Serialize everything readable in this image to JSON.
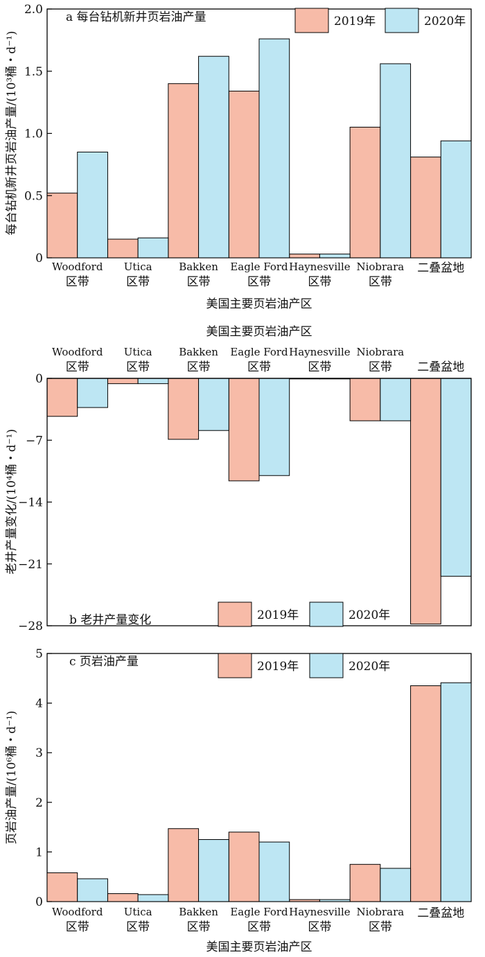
{
  "legend": [
    {
      "label": "2019年",
      "color": "#f7bba8"
    },
    {
      "label": "2020年",
      "color": "#bde6f3"
    }
  ],
  "chart_data": [
    {
      "type": "bar",
      "title": "a 每台钻机新井页岩油产量",
      "xlabel": "美国主要页岩油产区",
      "ylabel": "每台钻机新井页岩油产量/(10³桶・d⁻¹)",
      "categories": [
        [
          "Woodford",
          "区带"
        ],
        [
          "Utica",
          "区带"
        ],
        [
          "Bakken",
          "区带"
        ],
        [
          "Eagle Ford",
          "区带"
        ],
        [
          "Haynesville",
          "区带"
        ],
        [
          "Niobrara",
          "区带"
        ],
        [
          "二叠盆地",
          ""
        ]
      ],
      "series": [
        {
          "name": "2019年",
          "values": [
            0.52,
            0.15,
            1.4,
            1.34,
            0.03,
            1.05,
            0.81
          ]
        },
        {
          "name": "2020年",
          "values": [
            0.85,
            0.16,
            1.62,
            1.76,
            0.03,
            1.56,
            0.94
          ]
        }
      ],
      "ylim": [
        0,
        2.0
      ],
      "yticks": [
        0,
        0.5,
        1.0,
        1.5,
        2.0
      ],
      "ytick_labels": [
        "0",
        "0.5",
        "1.0",
        "1.5",
        "2.0"
      ],
      "legend_position": "top-right",
      "category_axis": "bottom"
    },
    {
      "type": "bar",
      "title": "b 老井产量变化",
      "xlabel": "美国主要页岩油产区",
      "ylabel": "老井产量变化/(10⁴桶・d⁻¹)",
      "categories": [
        [
          "Woodford",
          "区带"
        ],
        [
          "Utica",
          "区带"
        ],
        [
          "Bakken",
          "区带"
        ],
        [
          "Eagle Ford",
          "区带"
        ],
        [
          "Haynesville",
          "区带"
        ],
        [
          "Niobrara",
          "区带"
        ],
        [
          "二叠盆地",
          ""
        ]
      ],
      "series": [
        {
          "name": "2019年",
          "values": [
            -4.3,
            -0.6,
            -6.9,
            -11.6,
            -0.05,
            -4.8,
            -27.8
          ]
        },
        {
          "name": "2020年",
          "values": [
            -3.3,
            -0.6,
            -5.9,
            -11.0,
            -0.05,
            -4.8,
            -22.4
          ]
        }
      ],
      "ylim": [
        -28,
        0
      ],
      "yticks": [
        0,
        -7,
        -14,
        -21,
        -28
      ],
      "ytick_labels": [
        "0",
        "−7",
        "−14",
        "−21",
        "−28"
      ],
      "legend_position": "bottom-center",
      "category_axis": "top"
    },
    {
      "type": "bar",
      "title": "c 页岩油产量",
      "xlabel": "美国主要页岩油产区",
      "ylabel": "页岩油产量/(10⁶桶・d⁻¹)",
      "categories": [
        [
          "Woodford",
          "区带"
        ],
        [
          "Utica",
          "区带"
        ],
        [
          "Bakken",
          "区带"
        ],
        [
          "Eagle Ford",
          "区带"
        ],
        [
          "Haynesville",
          "区带"
        ],
        [
          "Niobrara",
          "区带"
        ],
        [
          "二叠盆地",
          ""
        ]
      ],
      "series": [
        {
          "name": "2019年",
          "values": [
            0.58,
            0.16,
            1.47,
            1.4,
            0.04,
            0.75,
            4.35
          ]
        },
        {
          "name": "2020年",
          "values": [
            0.46,
            0.14,
            1.25,
            1.2,
            0.04,
            0.67,
            4.41
          ]
        }
      ],
      "ylim": [
        0,
        5
      ],
      "yticks": [
        0,
        1,
        2,
        3,
        4,
        5
      ],
      "ytick_labels": [
        "0",
        "1",
        "2",
        "3",
        "4",
        "5"
      ],
      "legend_position": "top-center",
      "category_axis": "bottom"
    }
  ]
}
